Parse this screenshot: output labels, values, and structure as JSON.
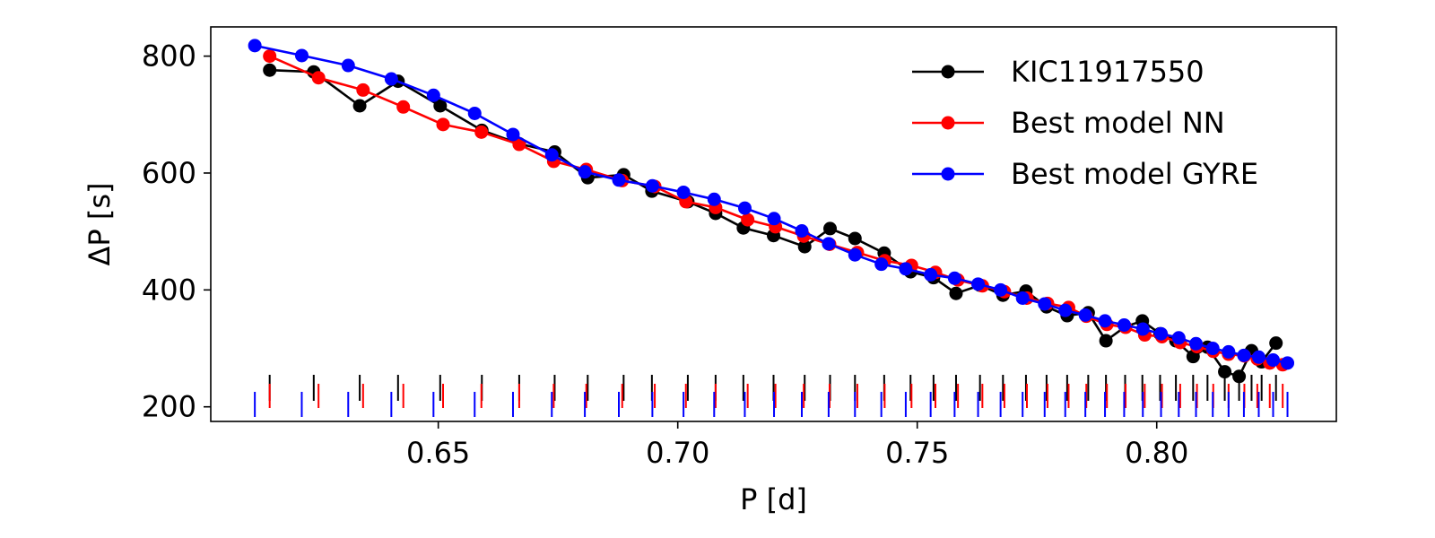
{
  "chart_data": {
    "type": "line",
    "xlabel": "P [d]",
    "ylabel": "ΔP [s]",
    "xlim": [
      0.6025,
      0.8375
    ],
    "ylim": [
      175,
      850
    ],
    "xticks": [
      0.65,
      0.7,
      0.75,
      0.8
    ],
    "xtick_labels": [
      "0.65",
      "0.70",
      "0.75",
      "0.80"
    ],
    "yticks": [
      200,
      400,
      600,
      800
    ],
    "ytick_labels": [
      "200",
      "400",
      "600",
      "800"
    ],
    "legend_position": "top-right",
    "series": [
      {
        "name": "KIC11917550",
        "color": "#000000",
        "x": [
          0.6148,
          0.624,
          0.6336,
          0.6416,
          0.6504,
          0.6591,
          0.6669,
          0.6743,
          0.6812,
          0.6887,
          0.6946,
          0.7021,
          0.7079,
          0.7137,
          0.72,
          0.7265,
          0.7318,
          0.737,
          0.7431,
          0.7486,
          0.7534,
          0.7581,
          0.7631,
          0.7679,
          0.7727,
          0.777,
          0.7813,
          0.7857,
          0.7894,
          0.7934,
          0.797,
          0.8007,
          0.804,
          0.8076,
          0.8106,
          0.8142,
          0.8172,
          0.8198,
          0.8219,
          0.8249
        ],
        "y": [
          776,
          773,
          715,
          757,
          715,
          673,
          650,
          636,
          592,
          597,
          569,
          551,
          531,
          506,
          493,
          474,
          505,
          488,
          463,
          431,
          421,
          394,
          408,
          391,
          398,
          371,
          356,
          361,
          313,
          337,
          347,
          325,
          313,
          286,
          302,
          260,
          252,
          296,
          277,
          309
        ]
      },
      {
        "name": "Best model NN",
        "color": "#ff0000",
        "x": [
          0.6148,
          0.625,
          0.6343,
          0.6427,
          0.651,
          0.659,
          0.6669,
          0.6741,
          0.6809,
          0.6884,
          0.6952,
          0.7017,
          0.7079,
          0.7146,
          0.7204,
          0.7263,
          0.7317,
          0.7375,
          0.7432,
          0.7488,
          0.7538,
          0.7585,
          0.7636,
          0.7682,
          0.7729,
          0.7772,
          0.7816,
          0.7853,
          0.7896,
          0.7935,
          0.7975,
          0.8011,
          0.8049,
          0.8084,
          0.8118,
          0.815,
          0.8183,
          0.821,
          0.8236,
          0.8263
        ],
        "y": [
          800,
          763,
          742,
          713,
          683,
          670,
          649,
          620,
          606,
          587,
          577,
          551,
          541,
          520,
          508,
          492,
          478,
          464,
          450,
          442,
          430,
          417,
          407,
          397,
          386,
          377,
          370,
          355,
          341,
          336,
          323,
          320,
          310,
          303,
          295,
          290,
          287,
          282,
          275,
          272
        ]
      },
      {
        "name": "Best model GYRE",
        "color": "#0000ff",
        "x": [
          0.6117,
          0.6215,
          0.6312,
          0.6402,
          0.649,
          0.6576,
          0.6656,
          0.6737,
          0.6806,
          0.6877,
          0.6947,
          0.7012,
          0.7076,
          0.714,
          0.7201,
          0.7259,
          0.7315,
          0.737,
          0.7425,
          0.7476,
          0.7528,
          0.7578,
          0.7627,
          0.7674,
          0.772,
          0.7766,
          0.7809,
          0.7851,
          0.7892,
          0.7932,
          0.7971,
          0.8009,
          0.8046,
          0.8082,
          0.8117,
          0.815,
          0.8182,
          0.8213,
          0.8243,
          0.8273
        ],
        "y": [
          818,
          801,
          784,
          761,
          733,
          702,
          666,
          631,
          602,
          588,
          578,
          567,
          555,
          540,
          522,
          501,
          479,
          460,
          444,
          436,
          426,
          420,
          410,
          400,
          386,
          376,
          365,
          357,
          347,
          340,
          333,
          325,
          318,
          308,
          300,
          294,
          288,
          285,
          280,
          275
        ]
      }
    ]
  }
}
